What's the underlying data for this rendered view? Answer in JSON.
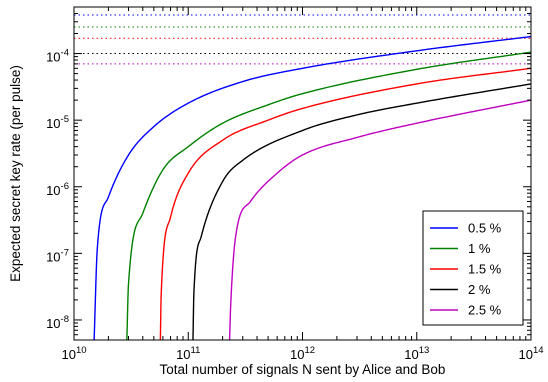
{
  "chart_data": {
    "type": "line",
    "xlabel": "Total number of signals N sent by Alice and Bob",
    "ylabel": "Expected secret key rate (per pulse)",
    "xscale": "log",
    "yscale": "log",
    "xlim": [
      10000000000.0,
      100000000000000.0
    ],
    "ylim": [
      5e-09,
      0.0005
    ],
    "x_ticks": [
      {
        "value": 10000000000.0,
        "base": "10",
        "exp": "10"
      },
      {
        "value": 100000000000.0,
        "base": "10",
        "exp": "11"
      },
      {
        "value": 1000000000000.0,
        "base": "10",
        "exp": "12"
      },
      {
        "value": 10000000000000.0,
        "base": "10",
        "exp": "13"
      },
      {
        "value": 100000000000000.0,
        "base": "10",
        "exp": "14"
      }
    ],
    "y_ticks": [
      {
        "value": 1e-08,
        "base": "10",
        "exp": "-8"
      },
      {
        "value": 1e-07,
        "base": "10",
        "exp": "-7"
      },
      {
        "value": 1e-06,
        "base": "10",
        "exp": "-6"
      },
      {
        "value": 1e-05,
        "base": "10",
        "exp": "-5"
      },
      {
        "value": 0.0001,
        "base": "10",
        "exp": "-4"
      }
    ],
    "legend_position": "lower-right",
    "grid": false,
    "series": [
      {
        "name": "0.5 %",
        "color": "#0000ff",
        "asymptote": 0.00038,
        "x": [
          15000000000.0,
          16000000000.0,
          20000000000.0,
          30000000000.0,
          50000000000.0,
          100000000000.0,
          300000000000.0,
          1000000000000.0,
          10000000000000.0,
          100000000000000.0
        ],
        "y": [
          5e-09,
          1.2e-07,
          7e-07,
          3e-06,
          8e-06,
          1.8e-05,
          3.8e-05,
          6e-05,
          0.00011,
          0.00018
        ]
      },
      {
        "name": "1 %",
        "color": "#008000",
        "asymptote": 0.00025,
        "x": [
          29000000000.0,
          30000000000.0,
          40000000000.0,
          60000000000.0,
          100000000000.0,
          200000000000.0,
          500000000000.0,
          1000000000000.0,
          10000000000000.0,
          100000000000000.0
        ],
        "y": [
          5e-09,
          3.5e-08,
          4e-07,
          1.8e-06,
          4e-06,
          9e-06,
          1.7e-05,
          2.5e-05,
          5.8e-05,
          0.000105
        ]
      },
      {
        "name": "1.5 %",
        "color": "#ff0000",
        "asymptote": 0.00017,
        "x": [
          57000000000.0,
          58000000000.0,
          70000000000.0,
          100000000000.0,
          200000000000.0,
          500000000000.0,
          1000000000000.0,
          10000000000000.0,
          100000000000000.0
        ],
        "y": [
          5e-09,
          2.5e-08,
          3.5e-07,
          1.6e-06,
          5e-06,
          1e-05,
          1.5e-05,
          3.5e-05,
          6e-05
        ]
      },
      {
        "name": "2 %",
        "color": "#000000",
        "asymptote": 0.0001,
        "x": [
          110000000000.0,
          112000000000.0,
          130000000000.0,
          200000000000.0,
          300000000000.0,
          1000000000000.0,
          3000000000000.0,
          10000000000000.0,
          100000000000000.0
        ],
        "y": [
          5e-09,
          2.5e-08,
          1.8e-07,
          1.2e-06,
          2.5e-06,
          7e-06,
          1.2e-05,
          1.8e-05,
          3.5e-05
        ]
      },
      {
        "name": "2.5 %",
        "color": "#bf00bf",
        "asymptote": 7e-05,
        "x": [
          230000000000.0,
          235000000000.0,
          260000000000.0,
          350000000000.0,
          600000000000.0,
          1000000000000.0,
          3000000000000.0,
          10000000000000.0,
          100000000000000.0
        ],
        "y": [
          5e-09,
          1.6e-08,
          1.8e-07,
          6e-07,
          1.6e-06,
          3e-06,
          5.5e-06,
          9e-06,
          2e-05
        ]
      }
    ]
  }
}
